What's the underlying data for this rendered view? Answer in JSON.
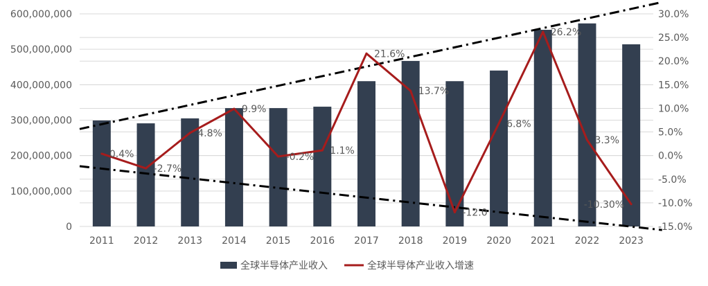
{
  "chart_data": {
    "type": "bar+line",
    "categories": [
      "2011",
      "2012",
      "2013",
      "2014",
      "2015",
      "2016",
      "2017",
      "2018",
      "2019",
      "2020",
      "2021",
      "2022",
      "2023"
    ],
    "series": [
      {
        "name": "全球半导体产业收入",
        "type": "bar",
        "axis": "left",
        "color": "#333f50",
        "values": [
          299000000,
          291000000,
          305000000,
          334000000,
          334000000,
          338000000,
          410000000,
          467000000,
          410000000,
          440000000,
          555000000,
          573000000,
          514000000
        ]
      },
      {
        "name": "全球半导体产业收入增速",
        "type": "line",
        "axis": "right",
        "color": "#a61c1c",
        "values": [
          0.4,
          -2.7,
          4.8,
          9.9,
          -0.2,
          1.1,
          21.6,
          13.7,
          -12.0,
          6.8,
          26.2,
          3.3,
          -10.3
        ],
        "data_labels": [
          "0.4%",
          "-2.7%",
          "4.8%",
          "9.9%",
          "-0.2%",
          "1.1%",
          "21.6%",
          "13.7%",
          "-12.0",
          "6.8%",
          "26.2%",
          "3.3%",
          "-10.30%"
        ]
      }
    ],
    "trendlines": [
      {
        "style": "dash-dot",
        "color": "#000000",
        "axis": "left",
        "from": [
          2010.5,
          275000000
        ],
        "to": [
          2023.7,
          633000000
        ]
      },
      {
        "style": "dash-dot",
        "color": "#000000",
        "axis": "left",
        "from": [
          2010.5,
          170000000
        ],
        "to": [
          2023.7,
          -10000000
        ]
      }
    ],
    "left_axis": {
      "ylim": [
        0,
        600000000
      ],
      "ticks": [
        "0",
        "100,000,000",
        "200,000,000",
        "300,000,000",
        "400,000,000",
        "500,000,000",
        "600,000,000"
      ]
    },
    "right_axis": {
      "ylim": [
        -15,
        30
      ],
      "ticks": [
        "-15.0%",
        "-10.0%",
        "-5.0%",
        "0.0%",
        "5.0%",
        "10.0%",
        "15.0%",
        "20.0%",
        "25.0%",
        "30.0%"
      ]
    },
    "grid": true,
    "legend": {
      "position": "bottom",
      "items": [
        "全球半导体产业收入",
        "全球半导体产业收入增速"
      ]
    },
    "title": "",
    "xlabel": "",
    "ylabel": ""
  }
}
